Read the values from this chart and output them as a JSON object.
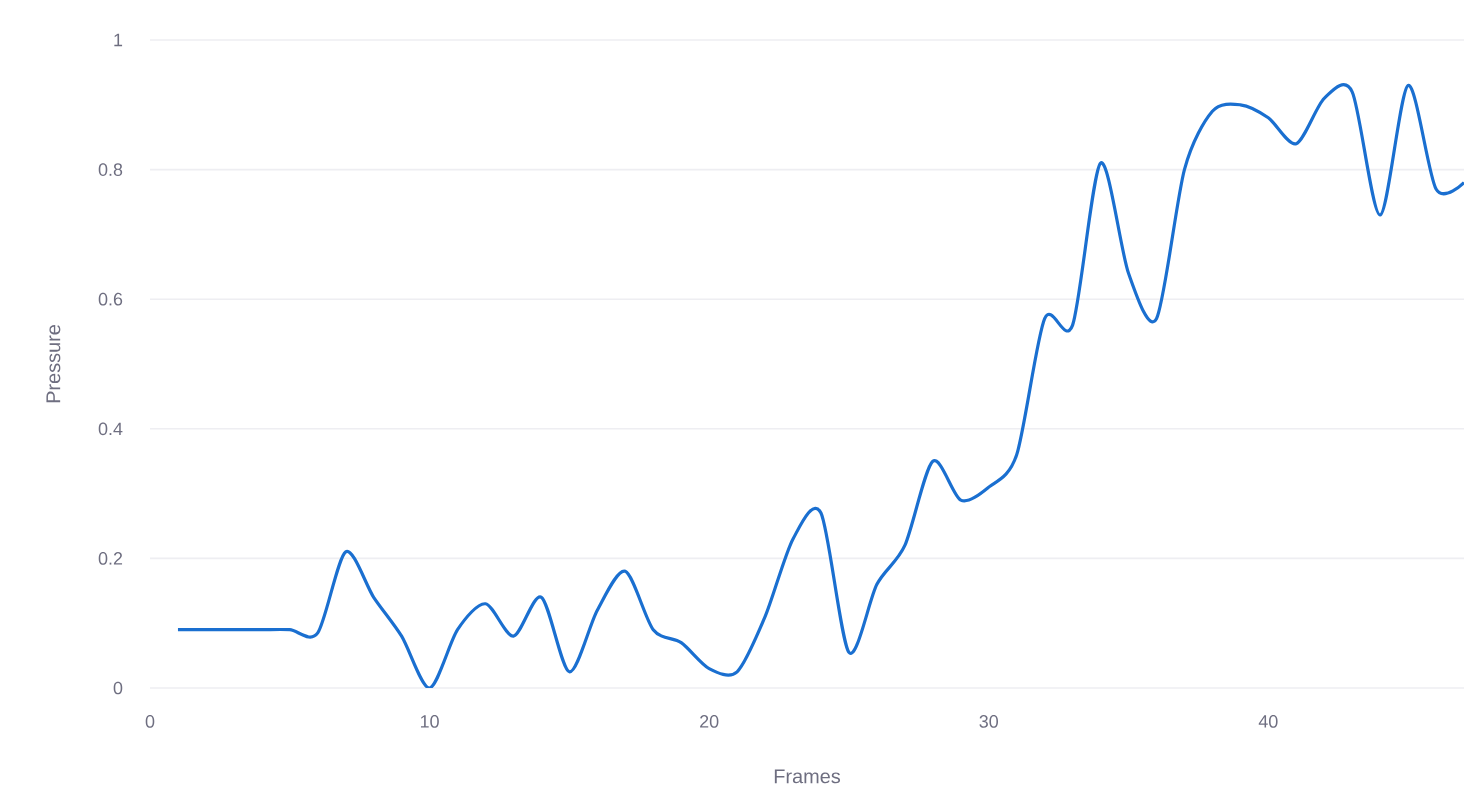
{
  "chart_data": {
    "type": "line",
    "xlabel": "Frames",
    "ylabel": "Pressure",
    "x": [
      1,
      2,
      3,
      4,
      5,
      6,
      7,
      8,
      9,
      10,
      11,
      12,
      13,
      14,
      15,
      16,
      17,
      18,
      19,
      20,
      21,
      22,
      23,
      24,
      25,
      26,
      27,
      28,
      29,
      30,
      31,
      32,
      33,
      34,
      35,
      36,
      37,
      38,
      39,
      40,
      41,
      42,
      43,
      44,
      45,
      46,
      47
    ],
    "series": [
      {
        "color": "#1a6fd0",
        "values": [
          0.09,
          0.09,
          0.09,
          0.09,
          0.09,
          0.085,
          0.21,
          0.14,
          0.08,
          0.0,
          0.09,
          0.13,
          0.08,
          0.14,
          0.025,
          0.12,
          0.18,
          0.09,
          0.07,
          0.03,
          0.025,
          0.11,
          0.23,
          0.27,
          0.055,
          0.16,
          0.22,
          0.35,
          0.29,
          0.31,
          0.36,
          0.57,
          0.56,
          0.81,
          0.64,
          0.57,
          0.8,
          0.89,
          0.9,
          0.88,
          0.84,
          0.91,
          0.92,
          0.73,
          0.93,
          0.77,
          0.78
        ]
      }
    ],
    "xlim": [
      0,
      47
    ],
    "ylim": [
      0,
      1
    ],
    "xticks": [
      0,
      10,
      20,
      30,
      40
    ],
    "yticks": [
      0,
      0.2,
      0.4,
      0.6,
      0.8,
      1
    ],
    "grid": "y",
    "marker": "none",
    "line_style": "solid"
  }
}
